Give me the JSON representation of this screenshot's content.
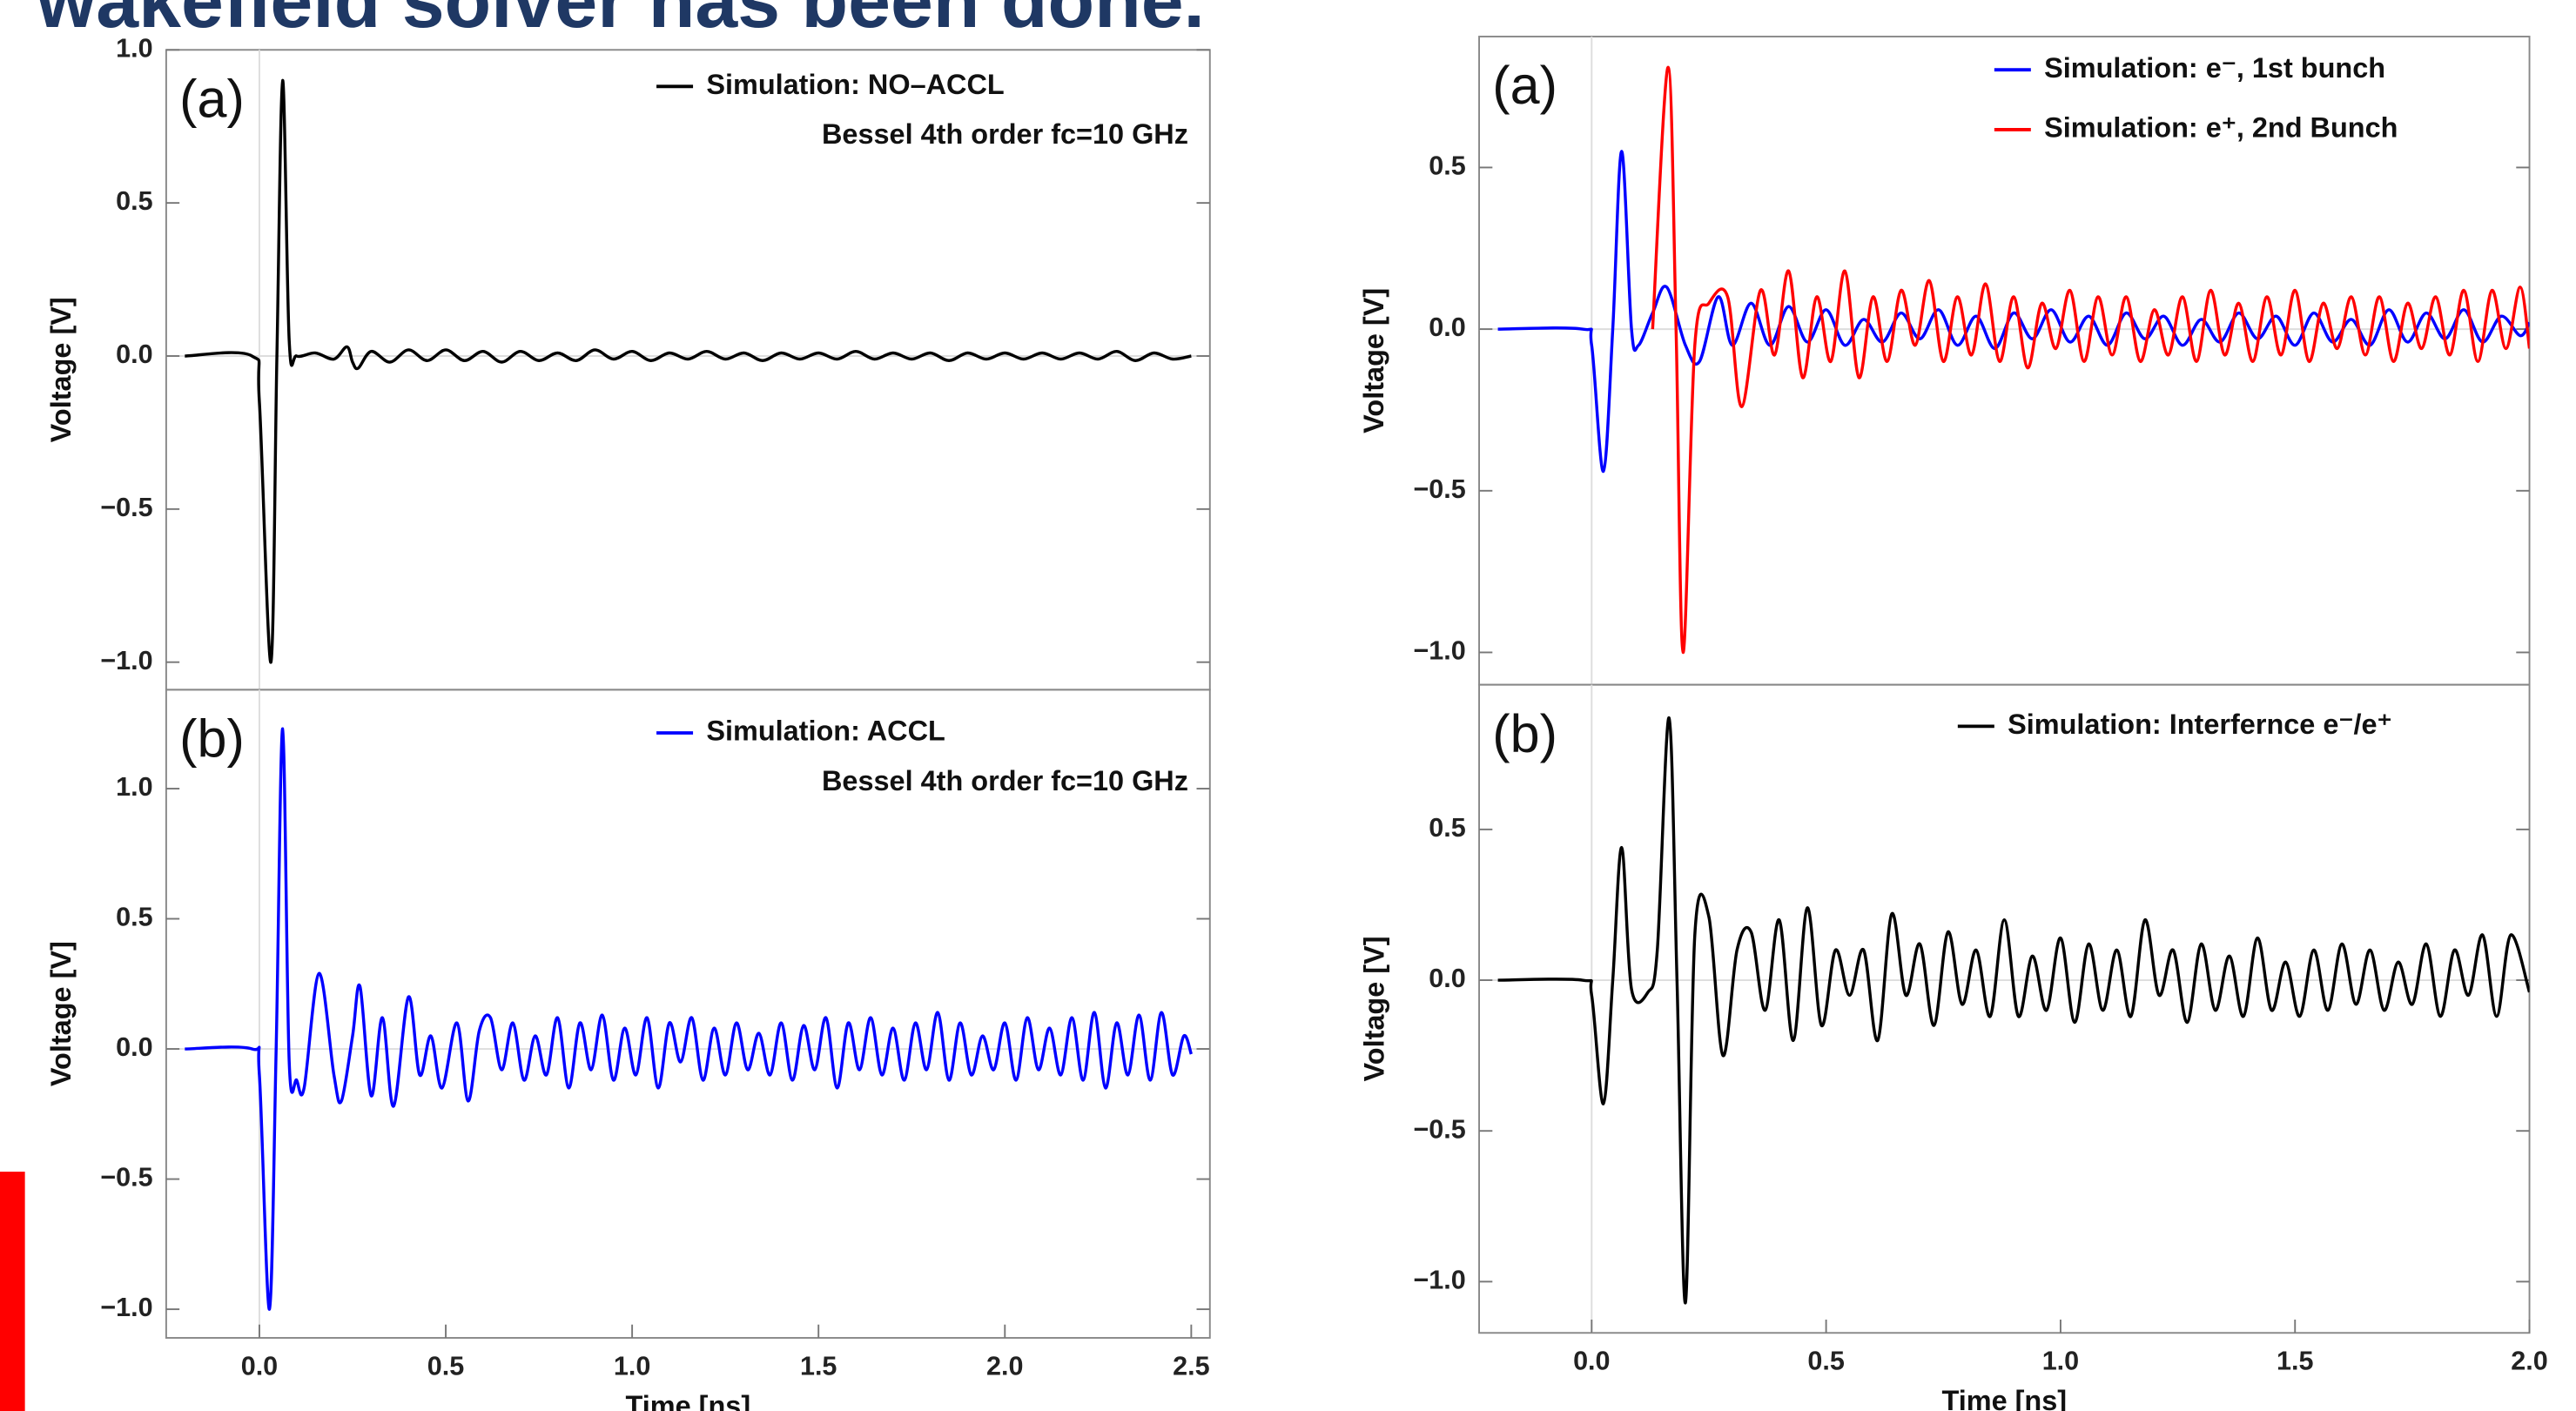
{
  "header": {
    "title": "wakefield solver has been done."
  },
  "chart_data": [
    {
      "type": "line",
      "panel_label": "(a)",
      "ylabel": "Voltage [V]",
      "legend_note": "Bessel 4th order fc=10 GHz",
      "xlim": [
        -0.25,
        2.55
      ],
      "ylim": [
        -1.09,
        1.0
      ],
      "yticks": [
        {
          "value": -1.0,
          "label": "−1.0"
        },
        {
          "value": -0.5,
          "label": "−0.5"
        },
        {
          "value": 0.0,
          "label": "0.0"
        },
        0.5,
        {
          "value": 1.0,
          "label": "1.0"
        }
      ],
      "series": [
        {
          "name": "Simulation: NO–ACCL",
          "color": "#000000",
          "x": [
            -0.2,
            -0.02,
            0,
            0.031,
            0.047,
            0.0625,
            0.08,
            0.1,
            0.15,
            0.2,
            0.235,
            0.25,
            0.265,
            0.3,
            0.35,
            0.4,
            0.45,
            0.5,
            0.55,
            0.6,
            0.65,
            0.7,
            0.75,
            0.8,
            0.85,
            0.9,
            0.95,
            1,
            1.05,
            1.1,
            1.15,
            1.2,
            1.25,
            1.3,
            1.35,
            1.4,
            1.45,
            1.5,
            1.55,
            1.6,
            1.65,
            1.7,
            1.75,
            1.8,
            1.85,
            1.9,
            1.95,
            2,
            2.05,
            2.1,
            2.15,
            2.2,
            2.25,
            2.3,
            2.35,
            2.4,
            2.45,
            2.5
          ],
          "values": [
            0,
            0,
            -0.15,
            -1.0,
            0,
            0.9,
            0.05,
            0.0,
            0.01,
            -0.01,
            0.03,
            -0.02,
            -0.04,
            0.015,
            -0.02,
            0.02,
            -0.015,
            0.02,
            -0.015,
            0.015,
            -0.02,
            0.015,
            -0.015,
            0.01,
            -0.015,
            0.02,
            -0.01,
            0.015,
            -0.015,
            0.01,
            -0.01,
            0.015,
            -0.01,
            0.01,
            -0.015,
            0.01,
            -0.01,
            0.01,
            -0.01,
            0.015,
            -0.01,
            0.01,
            -0.01,
            0.01,
            -0.015,
            0.01,
            -0.01,
            0.01,
            -0.01,
            0.01,
            -0.01,
            0.01,
            -0.01,
            0.015,
            -0.015,
            0.01,
            -0.01,
            0.0
          ]
        }
      ]
    },
    {
      "type": "line",
      "panel_label": "(b)",
      "ylabel": "Voltage [V]",
      "xlabel": "Time [ns]",
      "legend_note": "Bessel 4th order fc=10 GHz",
      "xlim": [
        -0.25,
        2.55
      ],
      "ylim": [
        -1.11,
        1.38
      ],
      "xticks": [
        {
          "value": 0.0,
          "label": "0.0"
        },
        0.5,
        {
          "value": 1.0,
          "label": "1.0"
        },
        1.5,
        {
          "value": 2.0,
          "label": "2.0"
        },
        2.5
      ],
      "yticks": [
        {
          "value": -1.0,
          "label": "−1.0"
        },
        {
          "value": -0.5,
          "label": "−0.5"
        },
        {
          "value": 0.0,
          "label": "0.0"
        },
        0.5,
        {
          "value": 1.0,
          "label": "1.0"
        }
      ],
      "series": [
        {
          "name": "Simulation: ACCL",
          "color": "#0000ff",
          "x": [
            -0.2,
            -0.02,
            0,
            0.027,
            0.045,
            0.0625,
            0.08,
            0.1,
            0.12,
            0.16,
            0.2,
            0.22,
            0.25,
            0.27,
            0.3,
            0.33,
            0.36,
            0.4,
            0.43,
            0.46,
            0.49,
            0.53,
            0.56,
            0.59,
            0.62,
            0.65,
            0.68,
            0.71,
            0.74,
            0.77,
            0.8,
            0.83,
            0.86,
            0.89,
            0.92,
            0.95,
            0.98,
            1.01,
            1.04,
            1.07,
            1.1,
            1.13,
            1.16,
            1.19,
            1.22,
            1.25,
            1.28,
            1.31,
            1.34,
            1.37,
            1.4,
            1.43,
            1.46,
            1.49,
            1.52,
            1.55,
            1.58,
            1.61,
            1.64,
            1.67,
            1.7,
            1.73,
            1.76,
            1.79,
            1.82,
            1.85,
            1.88,
            1.91,
            1.94,
            1.97,
            2,
            2.03,
            2.06,
            2.09,
            2.12,
            2.15,
            2.18,
            2.21,
            2.24,
            2.27,
            2.3,
            2.33,
            2.36,
            2.39,
            2.42,
            2.45,
            2.48,
            2.5
          ],
          "values": [
            0,
            0,
            -0.1,
            -1.0,
            0,
            1.23,
            -0.05,
            -0.12,
            -0.15,
            0.29,
            -0.1,
            -0.2,
            0.05,
            0.24,
            -0.18,
            0.12,
            -0.22,
            0.2,
            -0.1,
            0.05,
            -0.15,
            0.1,
            -0.2,
            0.07,
            0.12,
            -0.08,
            0.1,
            -0.12,
            0.05,
            -0.1,
            0.12,
            -0.15,
            0.1,
            -0.08,
            0.13,
            -0.12,
            0.08,
            -0.1,
            0.12,
            -0.15,
            0.1,
            -0.05,
            0.12,
            -0.12,
            0.08,
            -0.1,
            0.1,
            -0.08,
            0.06,
            -0.1,
            0.1,
            -0.12,
            0.09,
            -0.08,
            0.12,
            -0.15,
            0.1,
            -0.08,
            0.12,
            -0.1,
            0.08,
            -0.12,
            0.1,
            -0.08,
            0.14,
            -0.12,
            0.1,
            -0.1,
            0.05,
            -0.08,
            0.1,
            -0.12,
            0.12,
            -0.08,
            0.08,
            -0.1,
            0.12,
            -0.12,
            0.14,
            -0.15,
            0.1,
            -0.1,
            0.13,
            -0.12,
            0.14,
            -0.1,
            0.05,
            -0.02
          ]
        }
      ]
    },
    {
      "type": "line",
      "panel_label": "(a)",
      "ylabel": "Voltage [V]",
      "xlim": [
        -0.24,
        2.0
      ],
      "ylim": [
        -1.1,
        0.905
      ],
      "yticks": [
        {
          "value": -1.0,
          "label": "−1.0"
        },
        {
          "value": -0.5,
          "label": "−0.5"
        },
        {
          "value": 0.0,
          "label": "0.0"
        },
        0.5
      ],
      "series": [
        {
          "name": "Simulation: e⁻, 1st bunch",
          "color": "#0000ff",
          "x": [
            -0.2,
            -0.02,
            0,
            0.025,
            0.045,
            0.064,
            0.085,
            0.1,
            0.13,
            0.16,
            0.2,
            0.23,
            0.27,
            0.3,
            0.34,
            0.38,
            0.42,
            0.46,
            0.5,
            0.54,
            0.58,
            0.62,
            0.66,
            0.7,
            0.74,
            0.78,
            0.82,
            0.86,
            0.9,
            0.94,
            0.98,
            1.02,
            1.06,
            1.1,
            1.14,
            1.18,
            1.22,
            1.26,
            1.3,
            1.34,
            1.38,
            1.42,
            1.46,
            1.5,
            1.54,
            1.58,
            1.62,
            1.66,
            1.7,
            1.74,
            1.78,
            1.82,
            1.86,
            1.9,
            1.94,
            1.98,
            2.0
          ],
          "values": [
            0,
            0,
            -0.05,
            -0.44,
            0,
            0.55,
            0.0,
            -0.05,
            0.05,
            0.13,
            -0.05,
            -0.1,
            0.1,
            -0.05,
            0.08,
            -0.05,
            0.07,
            -0.04,
            0.06,
            -0.05,
            0.03,
            -0.04,
            0.05,
            -0.03,
            0.06,
            -0.05,
            0.04,
            -0.06,
            0.05,
            -0.03,
            0.06,
            -0.04,
            0.04,
            -0.05,
            0.05,
            -0.03,
            0.04,
            -0.05,
            0.03,
            -0.04,
            0.05,
            -0.03,
            0.04,
            -0.05,
            0.05,
            -0.04,
            0.03,
            -0.05,
            0.06,
            -0.04,
            0.05,
            -0.03,
            0.06,
            -0.04,
            0.04,
            -0.02,
            0.02
          ]
        },
        {
          "name": "Simulation: e⁺, 2nd Bunch",
          "color": "#ff0000",
          "x": [
            0.13,
            0.163,
            0.18,
            0.195,
            0.22,
            0.25,
            0.29,
            0.32,
            0.36,
            0.39,
            0.42,
            0.45,
            0.48,
            0.51,
            0.54,
            0.57,
            0.6,
            0.63,
            0.66,
            0.69,
            0.72,
            0.75,
            0.78,
            0.81,
            0.84,
            0.87,
            0.9,
            0.93,
            0.96,
            0.99,
            1.02,
            1.05,
            1.08,
            1.11,
            1.14,
            1.17,
            1.2,
            1.23,
            1.26,
            1.29,
            1.32,
            1.35,
            1.38,
            1.41,
            1.44,
            1.47,
            1.5,
            1.53,
            1.56,
            1.59,
            1.62,
            1.65,
            1.68,
            1.71,
            1.74,
            1.77,
            1.8,
            1.83,
            1.86,
            1.89,
            1.92,
            1.95,
            1.98,
            2.0
          ],
          "values": [
            0,
            0.81,
            0,
            -1.0,
            -0.05,
            0.08,
            0.1,
            -0.24,
            0.12,
            -0.08,
            0.18,
            -0.15,
            0.1,
            -0.1,
            0.18,
            -0.15,
            0.1,
            -0.1,
            0.12,
            -0.05,
            0.15,
            -0.1,
            0.1,
            -0.08,
            0.14,
            -0.1,
            0.1,
            -0.12,
            0.08,
            -0.06,
            0.12,
            -0.1,
            0.1,
            -0.08,
            0.1,
            -0.1,
            0.06,
            -0.08,
            0.1,
            -0.1,
            0.12,
            -0.08,
            0.08,
            -0.1,
            0.1,
            -0.08,
            0.12,
            -0.1,
            0.08,
            -0.06,
            0.1,
            -0.08,
            0.1,
            -0.1,
            0.08,
            -0.06,
            0.1,
            -0.08,
            0.12,
            -0.1,
            0.12,
            -0.06,
            0.13,
            -0.06
          ]
        }
      ]
    },
    {
      "type": "line",
      "panel_label": "(b)",
      "ylabel": "Voltage [V]",
      "xlabel": "Time [ns]",
      "xlim": [
        -0.24,
        2.0
      ],
      "ylim": [
        -1.17,
        0.98
      ],
      "xticks": [
        {
          "value": 0.0,
          "label": "0.0"
        },
        0.5,
        {
          "value": 1.0,
          "label": "1.0"
        },
        1.5,
        {
          "value": 2.0,
          "label": "2.0"
        }
      ],
      "yticks": [
        {
          "value": -1.0,
          "label": "−1.0"
        },
        {
          "value": -0.5,
          "label": "−0.5"
        },
        {
          "value": 0.0,
          "label": "0.0"
        },
        0.5
      ],
      "series": [
        {
          "name": "Simulation: Interfernce e⁻/e⁺",
          "color": "#000000",
          "x": [
            -0.2,
            -0.02,
            0,
            0.025,
            0.045,
            0.064,
            0.085,
            0.12,
            0.14,
            0.165,
            0.182,
            0.2,
            0.22,
            0.25,
            0.28,
            0.31,
            0.34,
            0.37,
            0.4,
            0.43,
            0.46,
            0.49,
            0.52,
            0.55,
            0.58,
            0.61,
            0.64,
            0.67,
            0.7,
            0.73,
            0.76,
            0.79,
            0.82,
            0.85,
            0.88,
            0.91,
            0.94,
            0.97,
            1,
            1.03,
            1.06,
            1.09,
            1.12,
            1.15,
            1.18,
            1.21,
            1.24,
            1.27,
            1.3,
            1.33,
            1.36,
            1.39,
            1.42,
            1.45,
            1.48,
            1.51,
            1.54,
            1.57,
            1.6,
            1.63,
            1.66,
            1.69,
            1.72,
            1.75,
            1.78,
            1.81,
            1.84,
            1.87,
            1.9,
            1.93,
            1.96,
            2.0
          ],
          "values": [
            0,
            0,
            -0.05,
            -0.41,
            0,
            0.44,
            -0.03,
            -0.04,
            0.1,
            0.87,
            0,
            -1.07,
            0.15,
            0.21,
            -0.25,
            0.1,
            0.16,
            -0.1,
            0.2,
            -0.2,
            0.24,
            -0.15,
            0.1,
            -0.05,
            0.1,
            -0.2,
            0.22,
            -0.05,
            0.12,
            -0.15,
            0.16,
            -0.08,
            0.1,
            -0.12,
            0.2,
            -0.12,
            0.08,
            -0.1,
            0.14,
            -0.14,
            0.12,
            -0.1,
            0.1,
            -0.12,
            0.2,
            -0.05,
            0.1,
            -0.14,
            0.12,
            -0.1,
            0.08,
            -0.12,
            0.14,
            -0.1,
            0.06,
            -0.12,
            0.1,
            -0.1,
            0.12,
            -0.08,
            0.1,
            -0.1,
            0.06,
            -0.08,
            0.12,
            -0.12,
            0.1,
            -0.05,
            0.15,
            -0.12,
            0.15,
            -0.04
          ]
        }
      ]
    }
  ]
}
